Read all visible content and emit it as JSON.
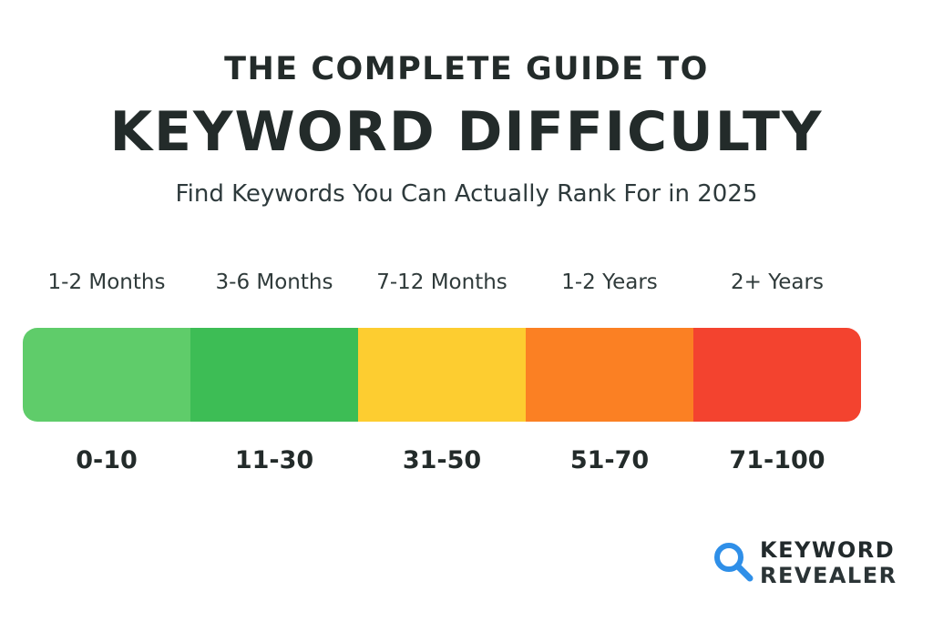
{
  "header": {
    "title_top": "THE COMPLETE GUIDE TO",
    "title_main": "KEYWORD DIFFICULTY",
    "subtitle": "Find Keywords You Can Actually Rank For in 2025"
  },
  "scale": {
    "segments": [
      {
        "time": "1-2 Months",
        "range": "0-10",
        "color": "#5fcc6a"
      },
      {
        "time": "3-6 Months",
        "range": "11-30",
        "color": "#3dbd55"
      },
      {
        "time": "7-12 Months",
        "range": "31-50",
        "color": "#fdcd30"
      },
      {
        "time": "1-2 Years",
        "range": "51-70",
        "color": "#fb8023"
      },
      {
        "time": "2+ Years",
        "range": "71-100",
        "color": "#f3432f"
      }
    ]
  },
  "brand": {
    "line1": "KEYWORD",
    "line2": "REVEALER",
    "icon": "magnifier-icon",
    "accent": "#2f8fe8"
  }
}
